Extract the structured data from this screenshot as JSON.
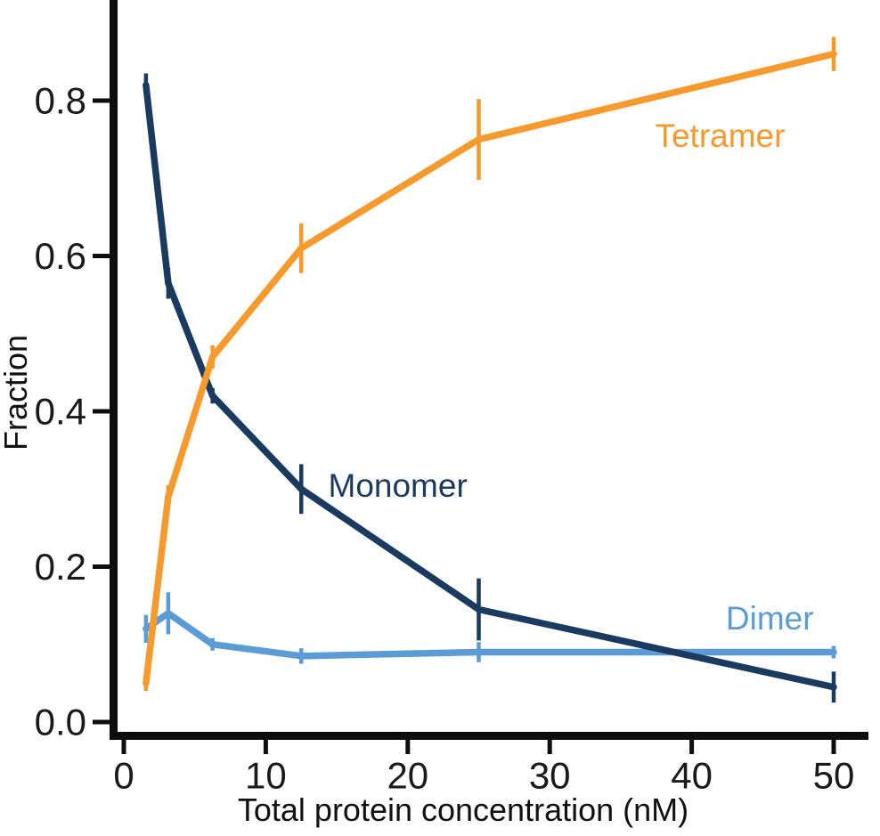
{
  "figure": {
    "background": "#FFFFFF",
    "axis_color": "#0d0d0d",
    "tick_label_color": "#1A1A1A"
  },
  "chart_data": {
    "type": "line",
    "title": "",
    "xlabel": "Total protein concentration (nM)",
    "ylabel": "Fraction",
    "xlim": [
      0,
      52.4
    ],
    "ylim": [
      0,
      0.93
    ],
    "grid": false,
    "legend_position": "inline series labels next to lines",
    "x": [
      1.56,
      3.13,
      6.25,
      12.5,
      25,
      50
    ],
    "xtick_values": [
      0,
      10,
      20,
      30,
      40,
      50
    ],
    "xtick_labels": [
      "0",
      "10",
      "20",
      "30",
      "40",
      "50"
    ],
    "ytick_values": [
      0,
      0.2,
      0.4,
      0.6,
      0.8
    ],
    "ytick_labels": [
      "0.0",
      "0.2",
      "0.4",
      "0.6",
      "0.8"
    ],
    "series": [
      {
        "name": "Dimer",
        "color": "#5B9CD6",
        "values": [
          0.12,
          0.14,
          0.1,
          0.085,
          0.09,
          0.09
        ],
        "errors": [
          0.018,
          0.027,
          0.008,
          0.01,
          0.013,
          0.008
        ],
        "label_at": {
          "x": 45.5,
          "y": 0.134
        }
      },
      {
        "name": "Monomer",
        "color": "#1B3A5F",
        "values": [
          0.82,
          0.565,
          0.42,
          0.3,
          0.145,
          0.045
        ],
        "errors": [
          0.015,
          0.02,
          0.01,
          0.032,
          0.04,
          0.02
        ],
        "label_at": {
          "x": 19.3,
          "y": 0.305
        }
      },
      {
        "name": "Tetramer",
        "color": "#F79A2E",
        "values": [
          0.05,
          0.29,
          0.47,
          0.61,
          0.75,
          0.86
        ],
        "errors": [
          0.01,
          0.015,
          0.015,
          0.032,
          0.052,
          0.022
        ],
        "label_at": {
          "x": 42.0,
          "y": 0.755
        }
      }
    ]
  }
}
